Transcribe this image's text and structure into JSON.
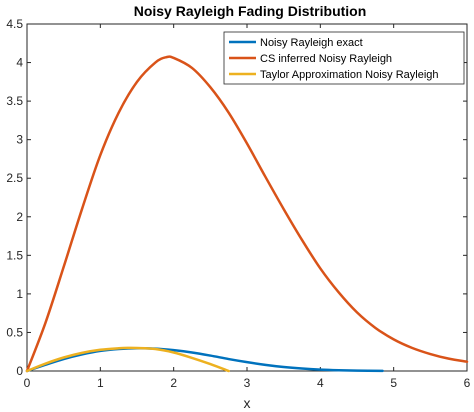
{
  "chart_data": {
    "type": "line",
    "title": "Noisy Rayleigh Fading Distribution",
    "xlabel": "x",
    "ylabel": "",
    "xlim": [
      0,
      6
    ],
    "ylim": [
      0,
      4.5
    ],
    "xticks": [
      "0",
      "1",
      "2",
      "3",
      "4",
      "5",
      "6"
    ],
    "yticks": [
      "0",
      "0.5",
      "1",
      "1.5",
      "2",
      "2.5",
      "3",
      "3.5",
      "4",
      "4.5"
    ],
    "grid": false,
    "legend_position": "top-right",
    "series": [
      {
        "name": "Noisy Rayleigh exact",
        "color": "#0072BD",
        "x": [
          0,
          0.25,
          0.5,
          0.75,
          1.0,
          1.25,
          1.5,
          1.75,
          2.0,
          2.25,
          2.5,
          2.75,
          3.0,
          3.25,
          3.5,
          3.75,
          4.0,
          4.25,
          4.5,
          4.85
        ],
        "y": [
          0,
          0.08,
          0.155,
          0.215,
          0.26,
          0.285,
          0.295,
          0.29,
          0.27,
          0.24,
          0.2,
          0.155,
          0.115,
          0.08,
          0.052,
          0.032,
          0.018,
          0.01,
          0.005,
          0.002
        ]
      },
      {
        "name": "CS inferred Noisy Rayleigh",
        "color": "#D95319",
        "x": [
          0,
          0.25,
          0.5,
          0.75,
          1.0,
          1.25,
          1.5,
          1.75,
          1.9,
          2.0,
          2.25,
          2.5,
          2.75,
          3.0,
          3.25,
          3.5,
          3.75,
          4.0,
          4.25,
          4.5,
          4.75,
          5.0,
          5.25,
          5.5,
          5.75,
          6.0
        ],
        "y": [
          0,
          0.62,
          1.35,
          2.1,
          2.8,
          3.35,
          3.75,
          4.0,
          4.07,
          4.06,
          3.93,
          3.68,
          3.35,
          2.95,
          2.52,
          2.1,
          1.7,
          1.33,
          1.02,
          0.76,
          0.56,
          0.41,
          0.3,
          0.22,
          0.16,
          0.12
        ]
      },
      {
        "name": "Taylor Approximation Noisy Rayleigh",
        "color": "#EDB120",
        "x": [
          0,
          0.25,
          0.5,
          0.75,
          1.0,
          1.25,
          1.4,
          1.5,
          1.75,
          2.0,
          2.25,
          2.5,
          2.75
        ],
        "y": [
          0,
          0.095,
          0.175,
          0.235,
          0.275,
          0.295,
          0.3,
          0.298,
          0.285,
          0.24,
          0.17,
          0.09,
          0.0
        ]
      }
    ]
  }
}
